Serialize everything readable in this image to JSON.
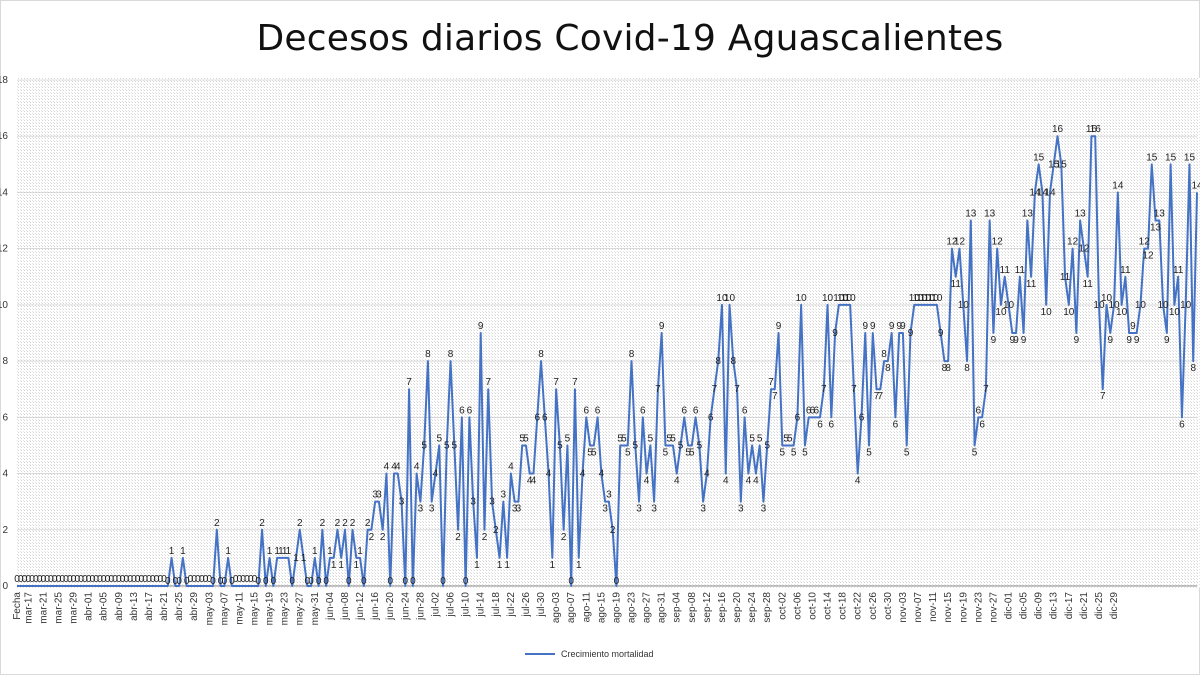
{
  "chart_data": {
    "type": "line",
    "title": "Decesos diarios Covid-19 Aguascalientes",
    "ylim": [
      0,
      18
    ],
    "yticks": [
      "0",
      "2",
      "4",
      "6",
      "8",
      "10",
      "12",
      "14",
      "16",
      "18"
    ],
    "grid": true,
    "legend_position": "bottom",
    "series": [
      {
        "name": "Crecimiento mortalidad",
        "color": "#4472C4",
        "values": [
          0,
          0,
          0,
          0,
          0,
          0,
          0,
          0,
          0,
          0,
          0,
          0,
          0,
          0,
          0,
          0,
          0,
          0,
          0,
          0,
          0,
          0,
          0,
          0,
          0,
          0,
          0,
          0,
          0,
          0,
          0,
          0,
          0,
          0,
          0,
          0,
          0,
          0,
          0,
          0,
          0,
          1,
          0,
          0,
          1,
          0,
          0,
          0,
          0,
          0,
          0,
          0,
          0,
          2,
          0,
          0,
          1,
          0,
          0,
          0,
          0,
          0,
          0,
          0,
          0,
          2,
          0,
          1,
          0,
          1,
          1,
          1,
          1,
          0,
          1,
          2,
          1,
          0,
          0,
          1,
          0,
          2,
          0,
          1,
          1,
          2,
          1,
          2,
          0,
          2,
          1,
          1,
          0,
          2,
          2,
          3,
          3,
          2,
          4,
          0,
          4,
          4,
          3,
          0,
          7,
          0,
          4,
          3,
          5,
          8,
          3,
          4,
          5,
          0,
          5,
          8,
          5,
          2,
          6,
          0,
          6,
          3,
          1,
          9,
          2,
          7,
          3,
          2,
          1,
          3,
          1,
          4,
          3,
          3,
          5,
          5,
          4,
          4,
          6,
          8,
          6,
          4,
          1,
          7,
          5,
          2,
          5,
          0,
          7,
          1,
          4,
          6,
          5,
          5,
          6,
          4,
          3,
          3,
          2,
          0,
          5,
          5,
          5,
          8,
          5,
          3,
          6,
          4,
          5,
          3,
          7,
          9,
          5,
          5,
          5,
          4,
          5,
          6,
          5,
          5,
          6,
          5,
          3,
          4,
          6,
          7,
          8,
          10,
          4,
          10,
          8,
          7,
          3,
          6,
          4,
          5,
          4,
          5,
          3,
          5,
          7,
          7,
          9,
          5,
          5,
          5,
          5,
          6,
          10,
          5,
          6,
          6,
          6,
          6,
          7,
          10,
          6,
          9,
          10,
          10,
          10,
          10,
          7,
          4,
          6,
          9,
          5,
          9,
          7,
          7,
          8,
          8,
          9,
          6,
          9,
          9,
          5,
          9,
          10,
          10,
          10,
          10,
          10,
          10,
          10,
          9,
          8,
          8,
          12,
          11,
          12,
          10,
          8,
          13,
          5,
          6,
          6,
          7,
          13,
          9,
          12,
          10,
          11,
          10,
          9,
          9,
          11,
          9,
          13,
          11,
          14,
          15,
          14,
          10,
          14,
          15,
          16,
          15,
          11,
          10,
          12,
          9,
          13,
          12,
          11,
          16,
          16,
          10,
          7,
          10,
          9,
          10,
          14,
          10,
          11,
          9,
          9,
          9,
          10,
          12,
          12,
          15,
          13,
          13,
          10,
          9,
          15,
          10,
          11,
          6,
          10,
          15,
          8,
          14
        ]
      }
    ],
    "data_label_ticks": [
      "Fecha",
      "mar-17",
      "mar-21",
      "mar-25",
      "mar-29",
      "abr-01",
      "abr-05",
      "abr-09",
      "abr-13",
      "abr-17",
      "abr-21",
      "abr-25",
      "abr-29",
      "may-03",
      "may-07",
      "may-11",
      "may-15",
      "may-19",
      "may-23",
      "may-27",
      "may-31",
      "jun-04",
      "jun-08",
      "jun-12",
      "jun-16",
      "jun-20",
      "jun-24",
      "jun-28",
      "jul-02",
      "jul-06",
      "jul-10",
      "jul-14",
      "jul-18",
      "jul-22",
      "jul-26",
      "jul-30",
      "ago-03",
      "ago-07",
      "ago-11",
      "ago-15",
      "ago-19",
      "ago-23",
      "ago-27",
      "ago-31",
      "sep-04",
      "sep-08",
      "sep-12",
      "sep-16",
      "sep-20",
      "sep-24",
      "sep-28",
      "oct-02",
      "oct-06",
      "oct-10",
      "oct-14",
      "oct-18",
      "oct-22",
      "oct-26",
      "oct-30",
      "nov-03",
      "nov-07",
      "nov-11",
      "nov-15",
      "nov-19",
      "nov-23",
      "nov-27",
      "dic-01",
      "dic-05",
      "dic-09",
      "dic-13",
      "dic-17",
      "dic-21",
      "dic-25",
      "dic-29"
    ]
  }
}
